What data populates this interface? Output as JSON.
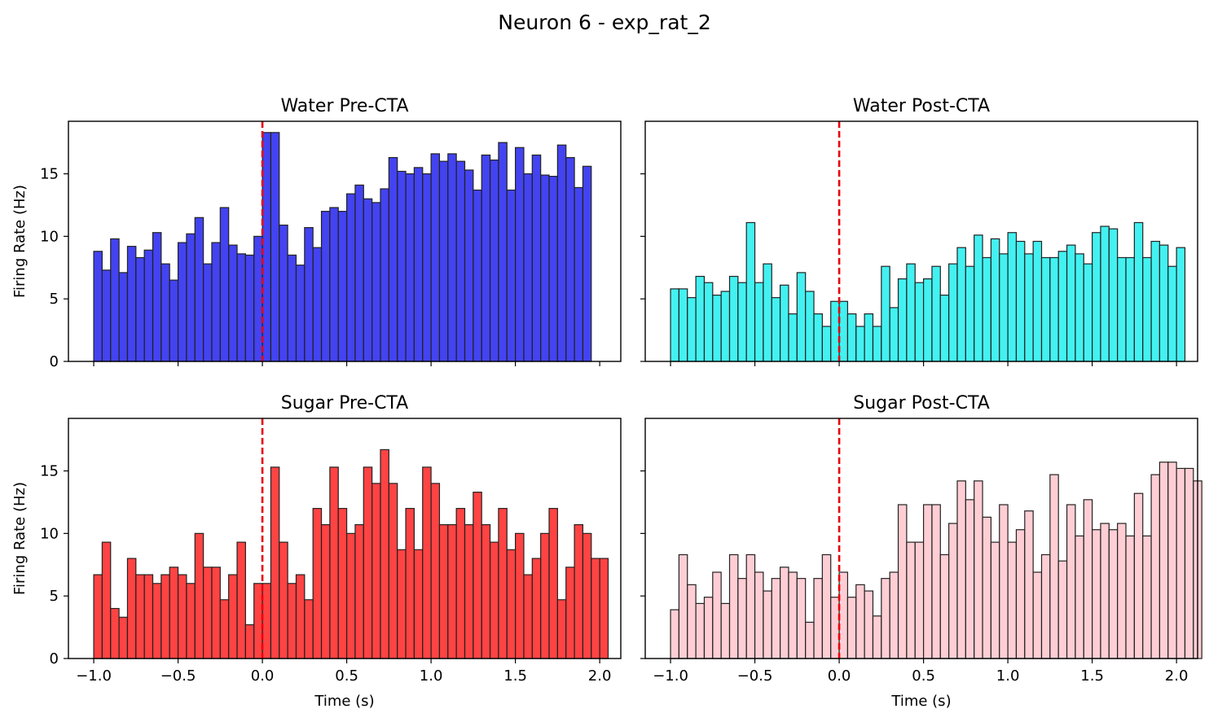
{
  "figure": {
    "title": "Neuron 6 - exp_rat_2"
  },
  "shared": {
    "xlabel": "Time (s)",
    "ylabel": "Firing Rate (Hz)",
    "xlim": [
      -1.15,
      2.125
    ],
    "ylim": [
      0,
      19.2
    ],
    "xticks": [
      -1.0,
      -0.5,
      0.0,
      0.5,
      1.0,
      1.5,
      2.0
    ],
    "xtick_labels": [
      "−1.0",
      "−0.5",
      "0.0",
      "0.5",
      "1.0",
      "1.5",
      "2.0"
    ],
    "yticks": [
      0,
      5,
      10,
      15
    ],
    "ytick_labels": [
      "0",
      "5",
      "10",
      "15"
    ],
    "bin_start": -1.0,
    "bin_width": 0.05,
    "stimulus_line": {
      "x": 0.0,
      "color": "#e8000b"
    }
  },
  "chart_data": [
    {
      "type": "bar",
      "title": "Water Pre-CTA",
      "color": "#2222ee",
      "values": [
        8.8,
        7.3,
        9.8,
        7.1,
        9.2,
        8.3,
        8.9,
        10.3,
        7.8,
        6.5,
        9.5,
        10.2,
        11.5,
        7.8,
        9.5,
        12.3,
        9.3,
        8.6,
        8.5,
        10.0,
        18.3,
        18.3,
        10.9,
        8.5,
        7.7,
        10.7,
        9.1,
        12.0,
        12.3,
        12.0,
        13.4,
        14.1,
        13.0,
        12.7,
        13.8,
        16.3,
        15.2,
        15.0,
        15.5,
        15.0,
        16.6,
        16.0,
        16.6,
        16.0,
        15.3,
        13.7,
        16.5,
        16.1,
        17.5,
        13.7,
        17.1,
        15.0,
        16.5,
        14.9,
        14.8,
        17.3,
        16.3,
        13.9,
        15.6
      ],
      "xticklabels_visible": false,
      "ylabel_visible": true,
      "yticklabels_visible": true
    },
    {
      "type": "bar",
      "title": "Water Post-CTA",
      "color": "#22eeee",
      "values": [
        5.8,
        5.8,
        5.1,
        6.8,
        6.3,
        5.3,
        5.6,
        6.8,
        6.3,
        11.1,
        6.3,
        7.8,
        5.1,
        6.1,
        3.8,
        7.1,
        5.6,
        3.8,
        2.8,
        4.8,
        4.8,
        3.8,
        2.8,
        3.8,
        2.8,
        7.6,
        4.3,
        6.6,
        7.8,
        6.3,
        6.6,
        7.6,
        5.3,
        7.8,
        9.1,
        7.6,
        10.1,
        8.3,
        9.8,
        8.6,
        10.3,
        9.6,
        8.6,
        9.6,
        8.3,
        8.3,
        8.8,
        9.3,
        8.6,
        7.8,
        10.3,
        10.8,
        10.6,
        8.3,
        8.3,
        11.1,
        8.3,
        9.6,
        9.3,
        7.6,
        9.1
      ],
      "xticklabels_visible": false,
      "ylabel_visible": false,
      "yticklabels_visible": false
    },
    {
      "type": "bar",
      "title": "Sugar Pre-CTA",
      "color": "#ff2222",
      "values": [
        6.7,
        9.3,
        4.0,
        3.3,
        8.0,
        6.7,
        6.7,
        6.0,
        6.7,
        7.3,
        6.7,
        6.0,
        10.0,
        7.3,
        7.3,
        4.7,
        6.7,
        9.3,
        2.7,
        6.0,
        6.0,
        15.3,
        9.3,
        6.0,
        6.7,
        4.7,
        12.0,
        10.7,
        15.3,
        12.0,
        10.0,
        10.7,
        15.3,
        14.0,
        16.7,
        14.0,
        8.7,
        12.0,
        8.7,
        15.3,
        14.0,
        10.7,
        10.7,
        12.0,
        10.7,
        13.3,
        10.7,
        9.3,
        12.0,
        8.7,
        10.0,
        6.7,
        8.0,
        10.0,
        12.0,
        4.7,
        7.3,
        10.7,
        10.0,
        8.0,
        8.0
      ],
      "xticklabels_visible": true,
      "ylabel_visible": true,
      "yticklabels_visible": true
    },
    {
      "type": "bar",
      "title": "Sugar Post-CTA",
      "color": "#ffc6cc",
      "values": [
        3.9,
        8.3,
        5.9,
        4.4,
        4.9,
        6.9,
        4.4,
        8.3,
        6.4,
        8.3,
        6.9,
        5.4,
        6.4,
        7.3,
        6.9,
        6.4,
        2.9,
        6.4,
        8.3,
        4.9,
        6.9,
        4.9,
        5.9,
        5.4,
        3.4,
        6.4,
        6.9,
        12.3,
        9.3,
        9.3,
        12.3,
        12.3,
        8.3,
        10.8,
        14.2,
        12.7,
        14.2,
        11.3,
        9.3,
        12.3,
        9.3,
        10.3,
        11.8,
        6.9,
        8.3,
        14.7,
        7.8,
        12.3,
        9.8,
        12.7,
        10.3,
        10.8,
        10.3,
        10.8,
        9.8,
        13.2,
        9.8,
        14.7,
        15.7,
        15.7,
        15.2,
        15.2,
        14.2
      ],
      "xticklabels_visible": true,
      "ylabel_visible": false,
      "yticklabels_visible": false
    }
  ]
}
